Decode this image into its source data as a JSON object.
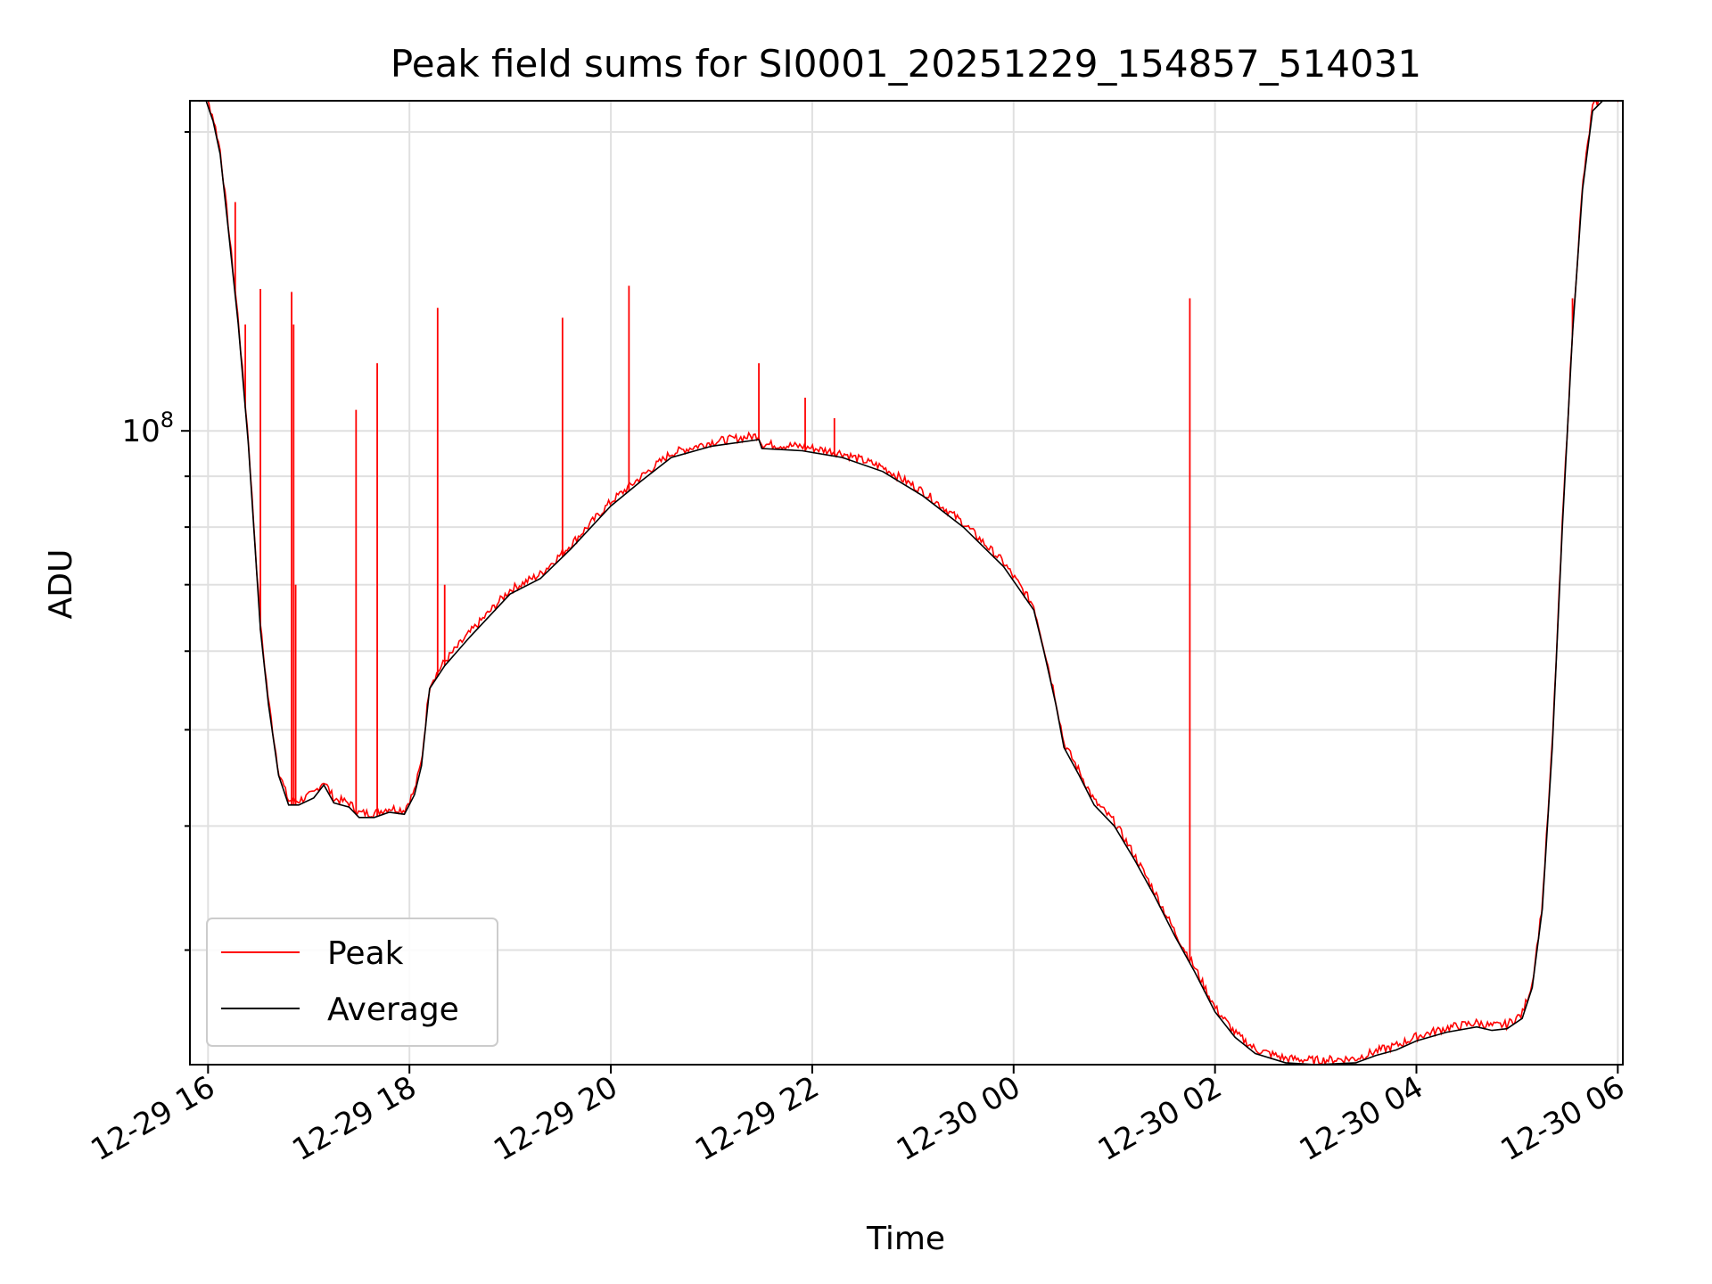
{
  "chart_data": {
    "type": "line",
    "title": "Peak field sums for SI0001_20251229_154857_514031",
    "xlabel": "Time",
    "ylabel": "ADU",
    "yscale": "log",
    "grid": true,
    "legend_position": "lower-left",
    "x_unit": "hours since 2025-12-29 00:00",
    "xlim": [
      15.82,
      30.05
    ],
    "ylim": [
      23000000,
      215000000
    ],
    "x_ticks": [
      {
        "value": 16,
        "label": "12-29 16"
      },
      {
        "value": 18,
        "label": "12-29 18"
      },
      {
        "value": 20,
        "label": "12-29 20"
      },
      {
        "value": 22,
        "label": "12-29 22"
      },
      {
        "value": 24,
        "label": "12-30 00"
      },
      {
        "value": 26,
        "label": "12-30 02"
      },
      {
        "value": 28,
        "label": "12-30 04"
      },
      {
        "value": 30,
        "label": "12-30 06"
      }
    ],
    "y_major_ticks": [
      {
        "value": 100000000,
        "label_base": "10",
        "label_exp": "8"
      }
    ],
    "y_minor_ticks": [
      30000000,
      40000000,
      50000000,
      60000000,
      70000000,
      80000000,
      90000000,
      200000000
    ],
    "series": [
      {
        "name": "Peak",
        "color": "#ff0000",
        "spikes": [
          [
            16.27,
            170000000
          ],
          [
            16.37,
            128000000
          ],
          [
            16.52,
            139000000
          ],
          [
            16.83,
            138000000
          ],
          [
            16.85,
            128000000
          ],
          [
            16.87,
            70000000
          ],
          [
            17.47,
            105000000
          ],
          [
            17.68,
            117000000
          ],
          [
            18.28,
            133000000
          ],
          [
            18.35,
            70000000
          ],
          [
            19.52,
            130000000
          ],
          [
            20.18,
            140000000
          ],
          [
            21.47,
            117000000
          ],
          [
            21.93,
            108000000
          ],
          [
            22.22,
            103000000
          ],
          [
            25.75,
            136000000
          ],
          [
            29.55,
            136000000
          ]
        ]
      },
      {
        "name": "Average",
        "color": "#000000",
        "points": [
          [
            15.82,
            215000000
          ],
          [
            15.98,
            215000000
          ],
          [
            16.05,
            205000000
          ],
          [
            16.12,
            190000000
          ],
          [
            16.2,
            160000000
          ],
          [
            16.3,
            128000000
          ],
          [
            16.4,
            97000000
          ],
          [
            16.52,
            63000000
          ],
          [
            16.6,
            53000000
          ],
          [
            16.7,
            45000000
          ],
          [
            16.8,
            42000000
          ],
          [
            16.9,
            42000000
          ],
          [
            17.05,
            42700000
          ],
          [
            17.15,
            44000000
          ],
          [
            17.25,
            42200000
          ],
          [
            17.4,
            41800000
          ],
          [
            17.5,
            40800000
          ],
          [
            17.65,
            40800000
          ],
          [
            17.8,
            41300000
          ],
          [
            17.95,
            41100000
          ],
          [
            18.05,
            43000000
          ],
          [
            18.12,
            46000000
          ],
          [
            18.2,
            55000000
          ],
          [
            18.35,
            58000000
          ],
          [
            18.6,
            62000000
          ],
          [
            19.0,
            68500000
          ],
          [
            19.3,
            71000000
          ],
          [
            19.6,
            76000000
          ],
          [
            20.0,
            84000000
          ],
          [
            20.3,
            89000000
          ],
          [
            20.6,
            94000000
          ],
          [
            21.0,
            96500000
          ],
          [
            21.47,
            98000000
          ],
          [
            21.5,
            96000000
          ],
          [
            21.9,
            95500000
          ],
          [
            22.3,
            94000000
          ],
          [
            22.7,
            91000000
          ],
          [
            23.1,
            86000000
          ],
          [
            23.5,
            80000000
          ],
          [
            23.9,
            73000000
          ],
          [
            24.2,
            66000000
          ],
          [
            24.3,
            60000000
          ],
          [
            24.42,
            53000000
          ],
          [
            24.5,
            48000000
          ],
          [
            24.65,
            45000000
          ],
          [
            24.8,
            42000000
          ],
          [
            25.0,
            40000000
          ],
          [
            25.2,
            37000000
          ],
          [
            25.4,
            34000000
          ],
          [
            25.6,
            31000000
          ],
          [
            25.8,
            28500000
          ],
          [
            26.0,
            26000000
          ],
          [
            26.2,
            24500000
          ],
          [
            26.4,
            23600000
          ],
          [
            26.7,
            23100000
          ],
          [
            27.0,
            23000000
          ],
          [
            27.4,
            23100000
          ],
          [
            27.6,
            23500000
          ],
          [
            27.8,
            23800000
          ],
          [
            28.0,
            24300000
          ],
          [
            28.3,
            24800000
          ],
          [
            28.6,
            25100000
          ],
          [
            28.75,
            24900000
          ],
          [
            28.9,
            25000000
          ],
          [
            29.05,
            25600000
          ],
          [
            29.15,
            27500000
          ],
          [
            29.25,
            33000000
          ],
          [
            29.35,
            48000000
          ],
          [
            29.45,
            80000000
          ],
          [
            29.55,
            125000000
          ],
          [
            29.65,
            175000000
          ],
          [
            29.75,
            210000000
          ],
          [
            29.85,
            215000000
          ],
          [
            30.05,
            215000000
          ]
        ]
      }
    ]
  }
}
